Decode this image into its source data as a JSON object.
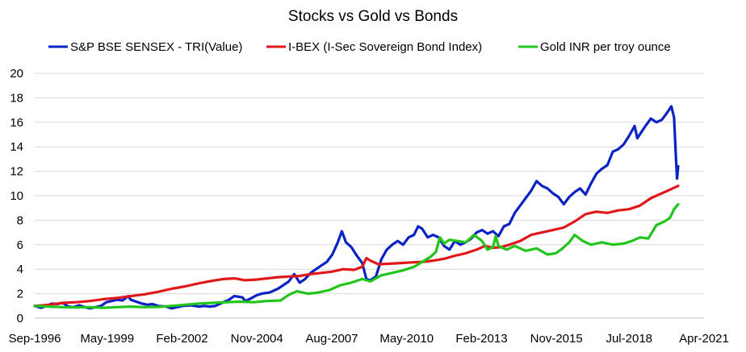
{
  "chart_data": {
    "type": "line",
    "title": "Stocks vs Gold vs Bonds",
    "xlabel": "",
    "ylabel": "",
    "ylim": [
      0,
      20
    ],
    "yticks": [
      0,
      2,
      4,
      6,
      8,
      10,
      12,
      14,
      16,
      18,
      20
    ],
    "xlim": [
      1996.67,
      2021.25
    ],
    "xtick_labels": [
      "Sep-1996",
      "May-1999",
      "Feb-2002",
      "Nov-2004",
      "Aug-2007",
      "May-2010",
      "Feb-2013",
      "Nov-2015",
      "Jul-2018",
      "Apr-2021"
    ],
    "xtick_positions": [
      1996.67,
      1999.33,
      2002.08,
      2004.83,
      2007.58,
      2010.33,
      2013.08,
      2015.83,
      2018.5,
      2021.25
    ],
    "grid": "horizontal",
    "legend_position": "top",
    "series": [
      {
        "name": "S&P BSE SENSEX - TRI(Value)",
        "color": "#0B22C4",
        "points": [
          [
            1996.67,
            1.0
          ],
          [
            1996.9,
            0.85
          ],
          [
            1997.1,
            1.0
          ],
          [
            1997.3,
            1.2
          ],
          [
            1997.5,
            1.15
          ],
          [
            1997.7,
            1.25
          ],
          [
            1997.9,
            0.95
          ],
          [
            1998.1,
            0.9
          ],
          [
            1998.3,
            1.05
          ],
          [
            1998.5,
            0.9
          ],
          [
            1998.7,
            0.8
          ],
          [
            1998.9,
            0.9
          ],
          [
            1999.1,
            1.0
          ],
          [
            1999.3,
            1.3
          ],
          [
            1999.5,
            1.4
          ],
          [
            1999.7,
            1.5
          ],
          [
            1999.9,
            1.45
          ],
          [
            2000.1,
            1.8
          ],
          [
            2000.2,
            1.5
          ],
          [
            2000.4,
            1.35
          ],
          [
            2000.6,
            1.2
          ],
          [
            2000.8,
            1.1
          ],
          [
            2001.0,
            1.15
          ],
          [
            2001.2,
            1.0
          ],
          [
            2001.5,
            0.95
          ],
          [
            2001.7,
            0.8
          ],
          [
            2001.9,
            0.9
          ],
          [
            2002.1,
            1.0
          ],
          [
            2002.4,
            1.05
          ],
          [
            2002.7,
            0.95
          ],
          [
            2002.9,
            1.0
          ],
          [
            2003.1,
            0.95
          ],
          [
            2003.3,
            1.0
          ],
          [
            2003.6,
            1.3
          ],
          [
            2003.8,
            1.5
          ],
          [
            2004.0,
            1.8
          ],
          [
            2004.3,
            1.7
          ],
          [
            2004.4,
            1.4
          ],
          [
            2004.6,
            1.6
          ],
          [
            2004.8,
            1.85
          ],
          [
            2005.0,
            2.0
          ],
          [
            2005.3,
            2.1
          ],
          [
            2005.6,
            2.4
          ],
          [
            2005.8,
            2.7
          ],
          [
            2006.0,
            3.0
          ],
          [
            2006.2,
            3.6
          ],
          [
            2006.4,
            2.9
          ],
          [
            2006.6,
            3.2
          ],
          [
            2006.8,
            3.7
          ],
          [
            2007.0,
            4.0
          ],
          [
            2007.2,
            4.3
          ],
          [
            2007.4,
            4.6
          ],
          [
            2007.6,
            5.2
          ],
          [
            2007.8,
            6.2
          ],
          [
            2007.95,
            7.1
          ],
          [
            2008.1,
            6.2
          ],
          [
            2008.3,
            5.8
          ],
          [
            2008.5,
            5.1
          ],
          [
            2008.7,
            4.5
          ],
          [
            2008.85,
            3.2
          ],
          [
            2009.0,
            3.1
          ],
          [
            2009.2,
            3.4
          ],
          [
            2009.4,
            4.8
          ],
          [
            2009.6,
            5.6
          ],
          [
            2009.8,
            6.0
          ],
          [
            2010.0,
            6.3
          ],
          [
            2010.2,
            6.0
          ],
          [
            2010.4,
            6.6
          ],
          [
            2010.6,
            6.8
          ],
          [
            2010.75,
            7.5
          ],
          [
            2010.9,
            7.3
          ],
          [
            2011.1,
            6.6
          ],
          [
            2011.3,
            6.8
          ],
          [
            2011.5,
            6.6
          ],
          [
            2011.7,
            5.9
          ],
          [
            2011.9,
            5.6
          ],
          [
            2012.1,
            6.3
          ],
          [
            2012.3,
            6.0
          ],
          [
            2012.5,
            6.2
          ],
          [
            2012.7,
            6.5
          ],
          [
            2012.9,
            7.0
          ],
          [
            2013.1,
            7.2
          ],
          [
            2013.3,
            6.9
          ],
          [
            2013.5,
            7.1
          ],
          [
            2013.7,
            6.7
          ],
          [
            2013.9,
            7.5
          ],
          [
            2014.1,
            7.7
          ],
          [
            2014.3,
            8.6
          ],
          [
            2014.5,
            9.2
          ],
          [
            2014.7,
            9.8
          ],
          [
            2014.9,
            10.4
          ],
          [
            2015.1,
            11.2
          ],
          [
            2015.3,
            10.8
          ],
          [
            2015.5,
            10.6
          ],
          [
            2015.7,
            10.2
          ],
          [
            2015.9,
            9.9
          ],
          [
            2016.1,
            9.3
          ],
          [
            2016.3,
            9.9
          ],
          [
            2016.5,
            10.3
          ],
          [
            2016.7,
            10.6
          ],
          [
            2016.9,
            10.1
          ],
          [
            2017.1,
            11.0
          ],
          [
            2017.3,
            11.8
          ],
          [
            2017.5,
            12.2
          ],
          [
            2017.7,
            12.5
          ],
          [
            2017.9,
            13.6
          ],
          [
            2018.1,
            13.8
          ],
          [
            2018.3,
            14.2
          ],
          [
            2018.5,
            14.9
          ],
          [
            2018.7,
            15.7
          ],
          [
            2018.8,
            14.7
          ],
          [
            2018.95,
            15.2
          ],
          [
            2019.1,
            15.7
          ],
          [
            2019.3,
            16.3
          ],
          [
            2019.5,
            16.0
          ],
          [
            2019.7,
            16.2
          ],
          [
            2019.9,
            16.8
          ],
          [
            2020.05,
            17.3
          ],
          [
            2020.15,
            16.4
          ],
          [
            2020.22,
            13.0
          ],
          [
            2020.26,
            11.4
          ],
          [
            2020.3,
            12.4
          ]
        ]
      },
      {
        "name": "I-BEX (I-Sec Sovereign Bond Index)",
        "color": "#E0181B",
        "points": [
          [
            1996.67,
            1.0
          ],
          [
            1997.2,
            1.1
          ],
          [
            1997.7,
            1.25
          ],
          [
            1998.2,
            1.3
          ],
          [
            1998.7,
            1.4
          ],
          [
            1999.2,
            1.55
          ],
          [
            1999.7,
            1.65
          ],
          [
            2000.2,
            1.8
          ],
          [
            2000.7,
            1.95
          ],
          [
            2001.2,
            2.15
          ],
          [
            2001.7,
            2.4
          ],
          [
            2002.2,
            2.6
          ],
          [
            2002.7,
            2.85
          ],
          [
            2003.2,
            3.05
          ],
          [
            2003.6,
            3.2
          ],
          [
            2004.0,
            3.25
          ],
          [
            2004.4,
            3.1
          ],
          [
            2004.8,
            3.15
          ],
          [
            2005.2,
            3.25
          ],
          [
            2005.6,
            3.35
          ],
          [
            2006.0,
            3.4
          ],
          [
            2006.4,
            3.45
          ],
          [
            2006.8,
            3.6
          ],
          [
            2007.2,
            3.7
          ],
          [
            2007.6,
            3.8
          ],
          [
            2008.0,
            4.0
          ],
          [
            2008.4,
            3.95
          ],
          [
            2008.7,
            4.2
          ],
          [
            2008.85,
            4.9
          ],
          [
            2009.0,
            4.7
          ],
          [
            2009.3,
            4.4
          ],
          [
            2009.7,
            4.45
          ],
          [
            2010.1,
            4.5
          ],
          [
            2010.5,
            4.55
          ],
          [
            2010.9,
            4.6
          ],
          [
            2011.3,
            4.7
          ],
          [
            2011.7,
            4.85
          ],
          [
            2012.1,
            5.1
          ],
          [
            2012.5,
            5.3
          ],
          [
            2012.9,
            5.6
          ],
          [
            2013.2,
            5.9
          ],
          [
            2013.5,
            5.75
          ],
          [
            2013.8,
            5.8
          ],
          [
            2014.1,
            6.0
          ],
          [
            2014.5,
            6.3
          ],
          [
            2014.9,
            6.8
          ],
          [
            2015.3,
            7.0
          ],
          [
            2015.7,
            7.2
          ],
          [
            2016.1,
            7.4
          ],
          [
            2016.5,
            7.9
          ],
          [
            2016.9,
            8.5
          ],
          [
            2017.3,
            8.7
          ],
          [
            2017.7,
            8.6
          ],
          [
            2018.1,
            8.8
          ],
          [
            2018.5,
            8.9
          ],
          [
            2018.9,
            9.2
          ],
          [
            2019.3,
            9.8
          ],
          [
            2019.7,
            10.2
          ],
          [
            2020.0,
            10.5
          ],
          [
            2020.3,
            10.8
          ]
        ]
      },
      {
        "name": "Gold INR per troy ounce",
        "color": "#21C51B",
        "points": [
          [
            1996.67,
            1.0
          ],
          [
            1997.2,
            0.95
          ],
          [
            1997.7,
            0.9
          ],
          [
            1998.2,
            0.88
          ],
          [
            1998.7,
            0.9
          ],
          [
            1999.2,
            0.85
          ],
          [
            1999.7,
            0.9
          ],
          [
            2000.2,
            0.95
          ],
          [
            2000.7,
            0.9
          ],
          [
            2001.2,
            0.92
          ],
          [
            2001.7,
            1.0
          ],
          [
            2002.2,
            1.1
          ],
          [
            2002.7,
            1.2
          ],
          [
            2003.2,
            1.25
          ],
          [
            2003.7,
            1.3
          ],
          [
            2004.2,
            1.35
          ],
          [
            2004.7,
            1.3
          ],
          [
            2005.2,
            1.4
          ],
          [
            2005.7,
            1.45
          ],
          [
            2006.0,
            1.9
          ],
          [
            2006.3,
            2.2
          ],
          [
            2006.7,
            2.0
          ],
          [
            2007.1,
            2.1
          ],
          [
            2007.5,
            2.3
          ],
          [
            2007.9,
            2.7
          ],
          [
            2008.3,
            2.9
          ],
          [
            2008.7,
            3.2
          ],
          [
            2009.0,
            3.0
          ],
          [
            2009.4,
            3.5
          ],
          [
            2009.8,
            3.7
          ],
          [
            2010.2,
            3.9
          ],
          [
            2010.6,
            4.2
          ],
          [
            2010.9,
            4.6
          ],
          [
            2011.2,
            5.0
          ],
          [
            2011.4,
            5.4
          ],
          [
            2011.55,
            6.6
          ],
          [
            2011.7,
            6.1
          ],
          [
            2011.9,
            6.4
          ],
          [
            2012.2,
            6.3
          ],
          [
            2012.5,
            6.2
          ],
          [
            2012.8,
            6.8
          ],
          [
            2013.1,
            6.3
          ],
          [
            2013.3,
            5.6
          ],
          [
            2013.5,
            5.8
          ],
          [
            2013.6,
            6.7
          ],
          [
            2013.7,
            5.9
          ],
          [
            2014.0,
            5.6
          ],
          [
            2014.3,
            5.9
          ],
          [
            2014.7,
            5.5
          ],
          [
            2015.1,
            5.7
          ],
          [
            2015.5,
            5.2
          ],
          [
            2015.8,
            5.3
          ],
          [
            2016.0,
            5.6
          ],
          [
            2016.3,
            6.2
          ],
          [
            2016.5,
            6.8
          ],
          [
            2016.8,
            6.3
          ],
          [
            2017.1,
            6.0
          ],
          [
            2017.5,
            6.2
          ],
          [
            2017.9,
            6.0
          ],
          [
            2018.3,
            6.1
          ],
          [
            2018.6,
            6.3
          ],
          [
            2018.9,
            6.6
          ],
          [
            2019.2,
            6.5
          ],
          [
            2019.5,
            7.6
          ],
          [
            2019.8,
            7.9
          ],
          [
            2020.0,
            8.2
          ],
          [
            2020.15,
            8.9
          ],
          [
            2020.3,
            9.3
          ]
        ]
      }
    ]
  }
}
